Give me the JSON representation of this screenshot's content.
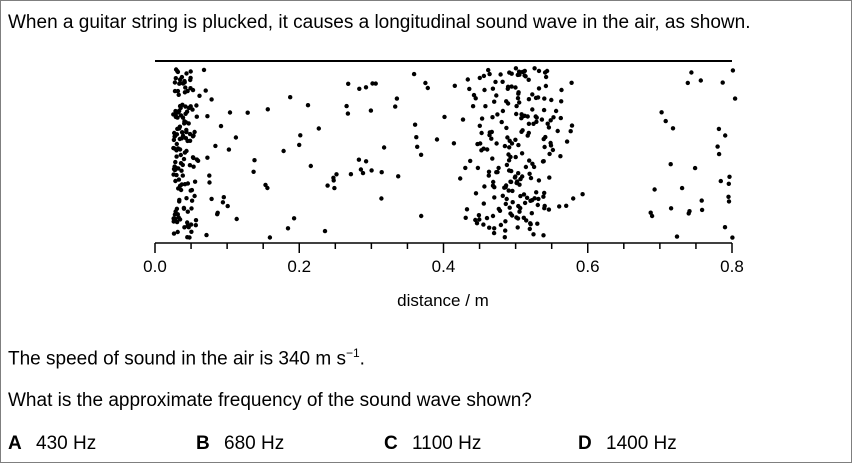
{
  "question": {
    "intro": "When a guitar string is plucked, it causes a longitudinal sound wave in the air, as shown.",
    "speed_prefix": "The speed of sound in the air is 340 m s",
    "speed_exponent": "−1",
    "speed_suffix": ".",
    "prompt": "What is the approximate frequency of the sound wave shown?"
  },
  "figure": {
    "axis_label": "distance / m",
    "tick_labels": [
      "0.0",
      "0.2",
      "0.4",
      "0.6",
      "0.8"
    ],
    "axis_range": [
      0.0,
      0.8
    ],
    "compression_centers_m": [
      0.03,
      0.5
    ],
    "secondary_cluster_m": 0.81,
    "particle_color": "#000000"
  },
  "options": [
    {
      "letter": "A",
      "value": "430 Hz"
    },
    {
      "letter": "B",
      "value": "680 Hz"
    },
    {
      "letter": "C",
      "value": "1100 Hz"
    },
    {
      "letter": "D",
      "value": "1400 Hz"
    }
  ]
}
